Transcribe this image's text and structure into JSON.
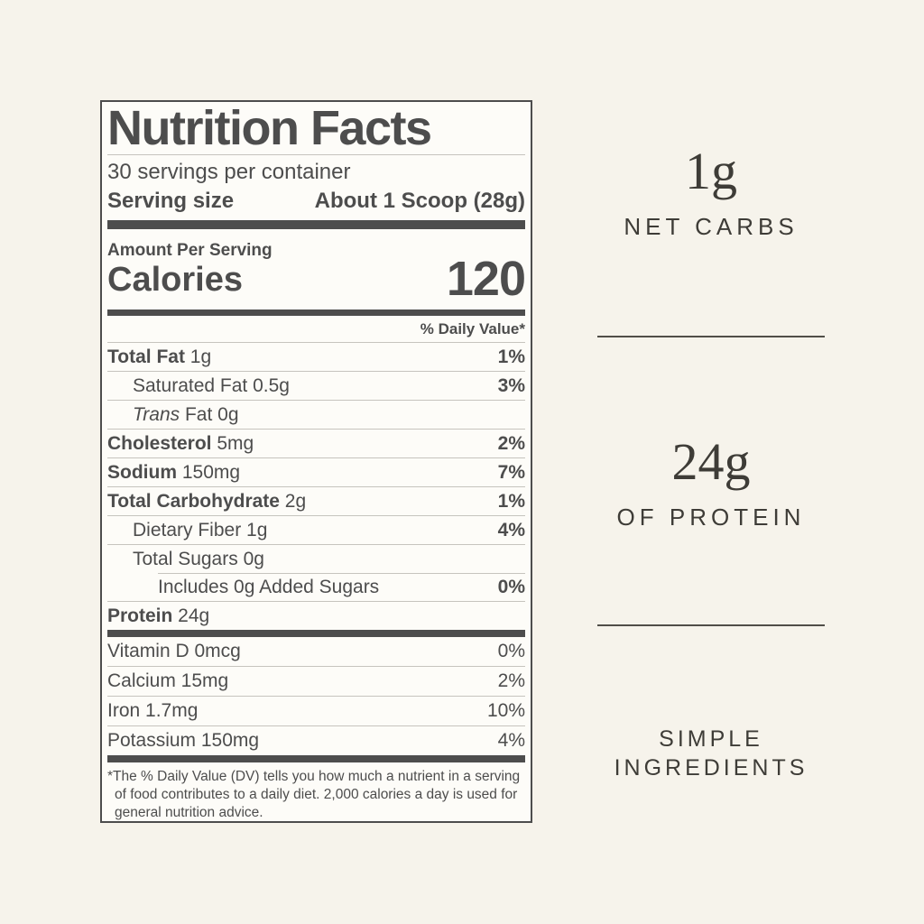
{
  "page": {
    "background_color": "#f6f3eb",
    "ink_color": "#4d4d4d",
    "accent_text_color": "#3e3c37"
  },
  "nutrition_label": {
    "title": "Nutrition Facts",
    "servings_per_container": "30 servings per container",
    "serving_size": {
      "label": "Serving size",
      "value": "About 1 Scoop (28g)"
    },
    "amount_per_serving": "Amount Per Serving",
    "calories": {
      "label": "Calories",
      "value": "120"
    },
    "daily_value_header": "% Daily Value*",
    "rows": [
      {
        "b": "Total Fat",
        "r": " 1g",
        "dv": "1%"
      },
      {
        "b": "",
        "r": "Saturated Fat 0.5g",
        "dv": "3%"
      },
      {
        "i": "Trans",
        "r": " Fat 0g",
        "dv": ""
      },
      {
        "b": "Cholesterol",
        "r": " 5mg",
        "dv": "2%"
      },
      {
        "b": "Sodium",
        "r": " 150mg",
        "dv": "7%"
      },
      {
        "b": "Total Carbohydrate",
        "r": " 2g",
        "dv": "1%"
      },
      {
        "b": "",
        "r": "Dietary Fiber 1g",
        "dv": "4%"
      },
      {
        "b": "",
        "r": "Total Sugars 0g",
        "dv": ""
      },
      {
        "b": "",
        "r": "Includes 0g Added Sugars",
        "dv": "0%"
      },
      {
        "b": "Protein",
        "r": " 24g",
        "dv": ""
      }
    ],
    "vitamin_rows": [
      {
        "r": "Vitamin D 0mcg",
        "dv": "0%"
      },
      {
        "r": "Calcium 15mg",
        "dv": "2%"
      },
      {
        "r": "Iron 1.7mg",
        "dv": "10%"
      },
      {
        "r": "Potassium 150mg",
        "dv": "4%"
      }
    ],
    "footnote": "*The % Daily Value (DV) tells you how much a nutrient in a serving of food contributes to a daily diet. 2,000 calories a day is used for general nutrition advice."
  },
  "highlights": [
    {
      "value": "1g",
      "label": "NET CARBS"
    },
    {
      "value": "24g",
      "label": "OF PROTEIN"
    },
    {
      "value": "",
      "label": "SIMPLE INGREDIENTS"
    }
  ]
}
